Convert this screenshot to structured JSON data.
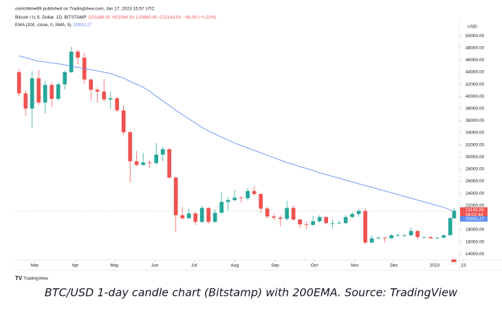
{
  "chart_data": {
    "type": "candlestick",
    "publisher": "ostrichtime69 published on TradingView.com, Jan 17, 2023 15:57 UTC",
    "symbol": "Bitcoin / U.S. Dollar, 1D, BITSTAMP",
    "ohlc_legend": [
      "O21186.00",
      "H21594.00",
      "L20863.00",
      "C21143.00",
      "−46.00 (−0.22%)"
    ],
    "currency": "USD",
    "caption": "BTC/USD 1-day candle chart (Bitstamp) with 200EMA. Source: TradingView",
    "brand": "TradingView",
    "up_color": "#26a69a",
    "down_color": "#ef5350",
    "x": [
      -12,
      -7,
      -2,
      3,
      8,
      13,
      18,
      23,
      28,
      33,
      38,
      43,
      48,
      53,
      58,
      63,
      68,
      73,
      78,
      83,
      88,
      93,
      98,
      103,
      108,
      113,
      118,
      123,
      128,
      133,
      138,
      143,
      148,
      153,
      158,
      163,
      168,
      173,
      178,
      183,
      188,
      193,
      198,
      203,
      208,
      213,
      218,
      223,
      228,
      233,
      238,
      243,
      248,
      253,
      258,
      263,
      268,
      273,
      278,
      283,
      288,
      293,
      298,
      303,
      308,
      313,
      318,
      321
    ],
    "open": [
      44000,
      40500,
      38000,
      43000,
      39000,
      41900,
      39600,
      42000,
      44000,
      47400,
      46400,
      42800,
      41100,
      40800,
      39500,
      39700,
      37700,
      34100,
      29300,
      28700,
      29100,
      29000,
      30400,
      31300,
      26600,
      20400,
      19900,
      20700,
      19300,
      21600,
      19300,
      20800,
      22600,
      22900,
      23300,
      23200,
      24400,
      23900,
      21500,
      20200,
      20000,
      19800,
      21600,
      19700,
      18900,
      18800,
      19400,
      20100,
      19100,
      19100,
      19100,
      20100,
      20600,
      21100,
      15900,
      16600,
      16700,
      16600,
      17100,
      17100,
      17100,
      17800,
      16800,
      16800,
      16600,
      16700,
      17100,
      19900
    ],
    "high": [
      44500,
      41000,
      44200,
      44400,
      42500,
      42300,
      42400,
      44300,
      48200,
      47700,
      47200,
      42900,
      41500,
      42900,
      40800,
      39900,
      38600,
      34400,
      31000,
      30700,
      29500,
      32300,
      31700,
      31400,
      26800,
      21800,
      21500,
      21000,
      21900,
      21700,
      21400,
      24200,
      23400,
      24600,
      23500,
      24900,
      25200,
      24000,
      21800,
      20600,
      20400,
      22800,
      22000,
      19800,
      19300,
      20300,
      20400,
      20200,
      19700,
      19500,
      20400,
      20900,
      21400,
      21500,
      17100,
      16900,
      16800,
      17300,
      17400,
      17300,
      18400,
      17900,
      16900,
      16900,
      16800,
      17200,
      20100,
      21594
    ],
    "low": [
      40000,
      36800,
      34800,
      38600,
      37200,
      38200,
      39300,
      41100,
      43900,
      45300,
      42100,
      39300,
      39000,
      39100,
      37900,
      37500,
      33700,
      25800,
      28500,
      28600,
      28200,
      28800,
      29300,
      26500,
      17700,
      19600,
      19800,
      18800,
      19100,
      19000,
      19200,
      20700,
      21200,
      22700,
      22500,
      22900,
      23600,
      20800,
      19900,
      19600,
      18600,
      19500,
      19500,
      18300,
      18100,
      18700,
      19200,
      18900,
      18200,
      18900,
      19000,
      20000,
      20100,
      15600,
      15800,
      16400,
      15900,
      16500,
      16900,
      16800,
      17000,
      16400,
      16600,
      16500,
      16500,
      16600,
      17100,
      19800
    ],
    "close": [
      40500,
      38000,
      43000,
      39000,
      41900,
      39600,
      42000,
      44000,
      47400,
      46400,
      42800,
      41100,
      40800,
      39500,
      39700,
      37700,
      34100,
      29300,
      28700,
      29100,
      29000,
      30400,
      31300,
      26600,
      20400,
      19900,
      20700,
      19300,
      21600,
      19300,
      20800,
      22600,
      22900,
      23300,
      23200,
      24400,
      23900,
      21500,
      20200,
      20000,
      19800,
      21600,
      19700,
      18900,
      18800,
      19400,
      20100,
      19100,
      19100,
      19100,
      20100,
      20600,
      21100,
      15900,
      16600,
      16700,
      16600,
      17100,
      17100,
      17100,
      17800,
      16800,
      16800,
      16600,
      16700,
      17100,
      19900,
      21143
    ],
    "last_price_label": "21143.00",
    "countdown": "08:02:44",
    "ema": {
      "name": "EMA (200, close, 0, SMA, 5)",
      "color": "#5b8def",
      "value_label": "20931.27",
      "values": [
        46700,
        46400,
        46100,
        45800,
        45700,
        45500,
        45400,
        45200,
        45000,
        44800,
        44600,
        44400,
        44200,
        44000,
        43800,
        43400,
        43000,
        42500,
        42000,
        41500,
        40900,
        40000,
        39300,
        38500,
        37700,
        37000,
        36300,
        35600,
        34900,
        34300,
        33800,
        33300,
        32800,
        32300,
        31900,
        31500,
        31100,
        30700,
        30300,
        29900,
        29500,
        29100,
        28800,
        28400,
        28100,
        27800,
        27400,
        27100,
        26800,
        26500,
        26200,
        25900,
        25600,
        25300,
        25000,
        24700,
        24400,
        24100,
        23800,
        23500,
        23200,
        22900,
        22600,
        22300,
        22000,
        21700,
        21300,
        20931
      ]
    },
    "xlim": [
      -15,
      325
    ],
    "xticks": [
      {
        "value": 0,
        "label": "Mar"
      },
      {
        "value": 31,
        "label": "Apr"
      },
      {
        "value": 61,
        "label": "May"
      },
      {
        "value": 92,
        "label": "Jun"
      },
      {
        "value": 122,
        "label": "Jul"
      },
      {
        "value": 153,
        "label": "Aug"
      },
      {
        "value": 184,
        "label": "Sep"
      },
      {
        "value": 214,
        "label": "Oct"
      },
      {
        "value": 245,
        "label": "Nov"
      },
      {
        "value": 275,
        "label": "Dec"
      },
      {
        "value": 306,
        "label": "2023"
      },
      {
        "value": 328,
        "label": "23"
      }
    ],
    "ylim": [
      13000,
      51600
    ],
    "yticks": [
      {
        "value": 14000,
        "label": "14000.00"
      },
      {
        "value": 16000,
        "label": "16000.00"
      },
      {
        "value": 18000,
        "label": "18000.00"
      },
      {
        "value": 20000,
        "label": "20000.00"
      },
      {
        "value": 22000,
        "label": "22000.00"
      },
      {
        "value": 24000,
        "label": "24000.00"
      },
      {
        "value": 26000,
        "label": "26000.00"
      },
      {
        "value": 28000,
        "label": "28000.00"
      },
      {
        "value": 30000,
        "label": "30000.00"
      },
      {
        "value": 32000,
        "label": "32000.00"
      },
      {
        "value": 34000,
        "label": "34000.00"
      },
      {
        "value": 36000,
        "label": "36000.00"
      },
      {
        "value": 38000,
        "label": "38000.00"
      },
      {
        "value": 40000,
        "label": "40000.00"
      },
      {
        "value": 42000,
        "label": "42000.00"
      },
      {
        "value": 44000,
        "label": "44000.00"
      },
      {
        "value": 46000,
        "label": "46000.00"
      },
      {
        "value": 48000,
        "label": "48000.00"
      },
      {
        "value": 50000,
        "label": "50000.00"
      }
    ],
    "grid": false
  }
}
